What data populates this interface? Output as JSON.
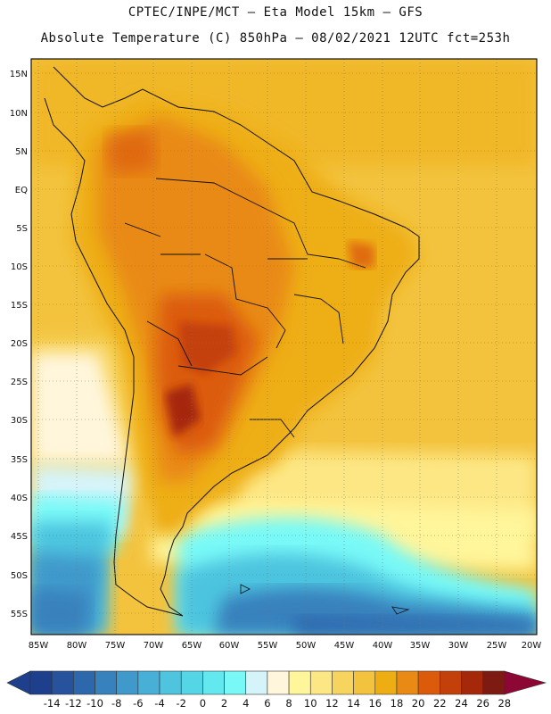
{
  "title": {
    "line1": "CPTEC/INPE/MCT –  Eta Model 15km – GFS",
    "line2": "Absolute Temperature (C) 850hPa – 08/02/2021 12UTC fct=253h"
  },
  "map": {
    "lat_labels": [
      "15N",
      "10N",
      "5N",
      "EQ",
      "5S",
      "10S",
      "15S",
      "20S",
      "25S",
      "30S",
      "35S",
      "40S",
      "45S",
      "50S",
      "55S"
    ],
    "lon_labels": [
      "85W",
      "80W",
      "75W",
      "70W",
      "65W",
      "60W",
      "55W",
      "50W",
      "45W",
      "40W",
      "35W",
      "30W",
      "25W",
      "20W"
    ]
  },
  "colorbar": {
    "labels": [
      "-14",
      "-12",
      "-10",
      "-8",
      "-6",
      "-4",
      "-2",
      "0",
      "2",
      "4",
      "6",
      "8",
      "10",
      "12",
      "14",
      "16",
      "18",
      "20",
      "22",
      "24",
      "26",
      "28"
    ],
    "colors": [
      "#1e3f8c",
      "#27539c",
      "#2d68ad",
      "#3781bd",
      "#3f99cb",
      "#48afd6",
      "#4ec4df",
      "#55d6e6",
      "#62e8ee",
      "#78f9f7",
      "#d5f4fa",
      "#fff6dc",
      "#fff59a",
      "#fde785",
      "#f7d45e",
      "#f3c33e",
      "#eeae12",
      "#e98a14",
      "#dc5b0a",
      "#c4400a",
      "#a5280a",
      "#7d1a12",
      "#8c0733"
    ]
  }
}
